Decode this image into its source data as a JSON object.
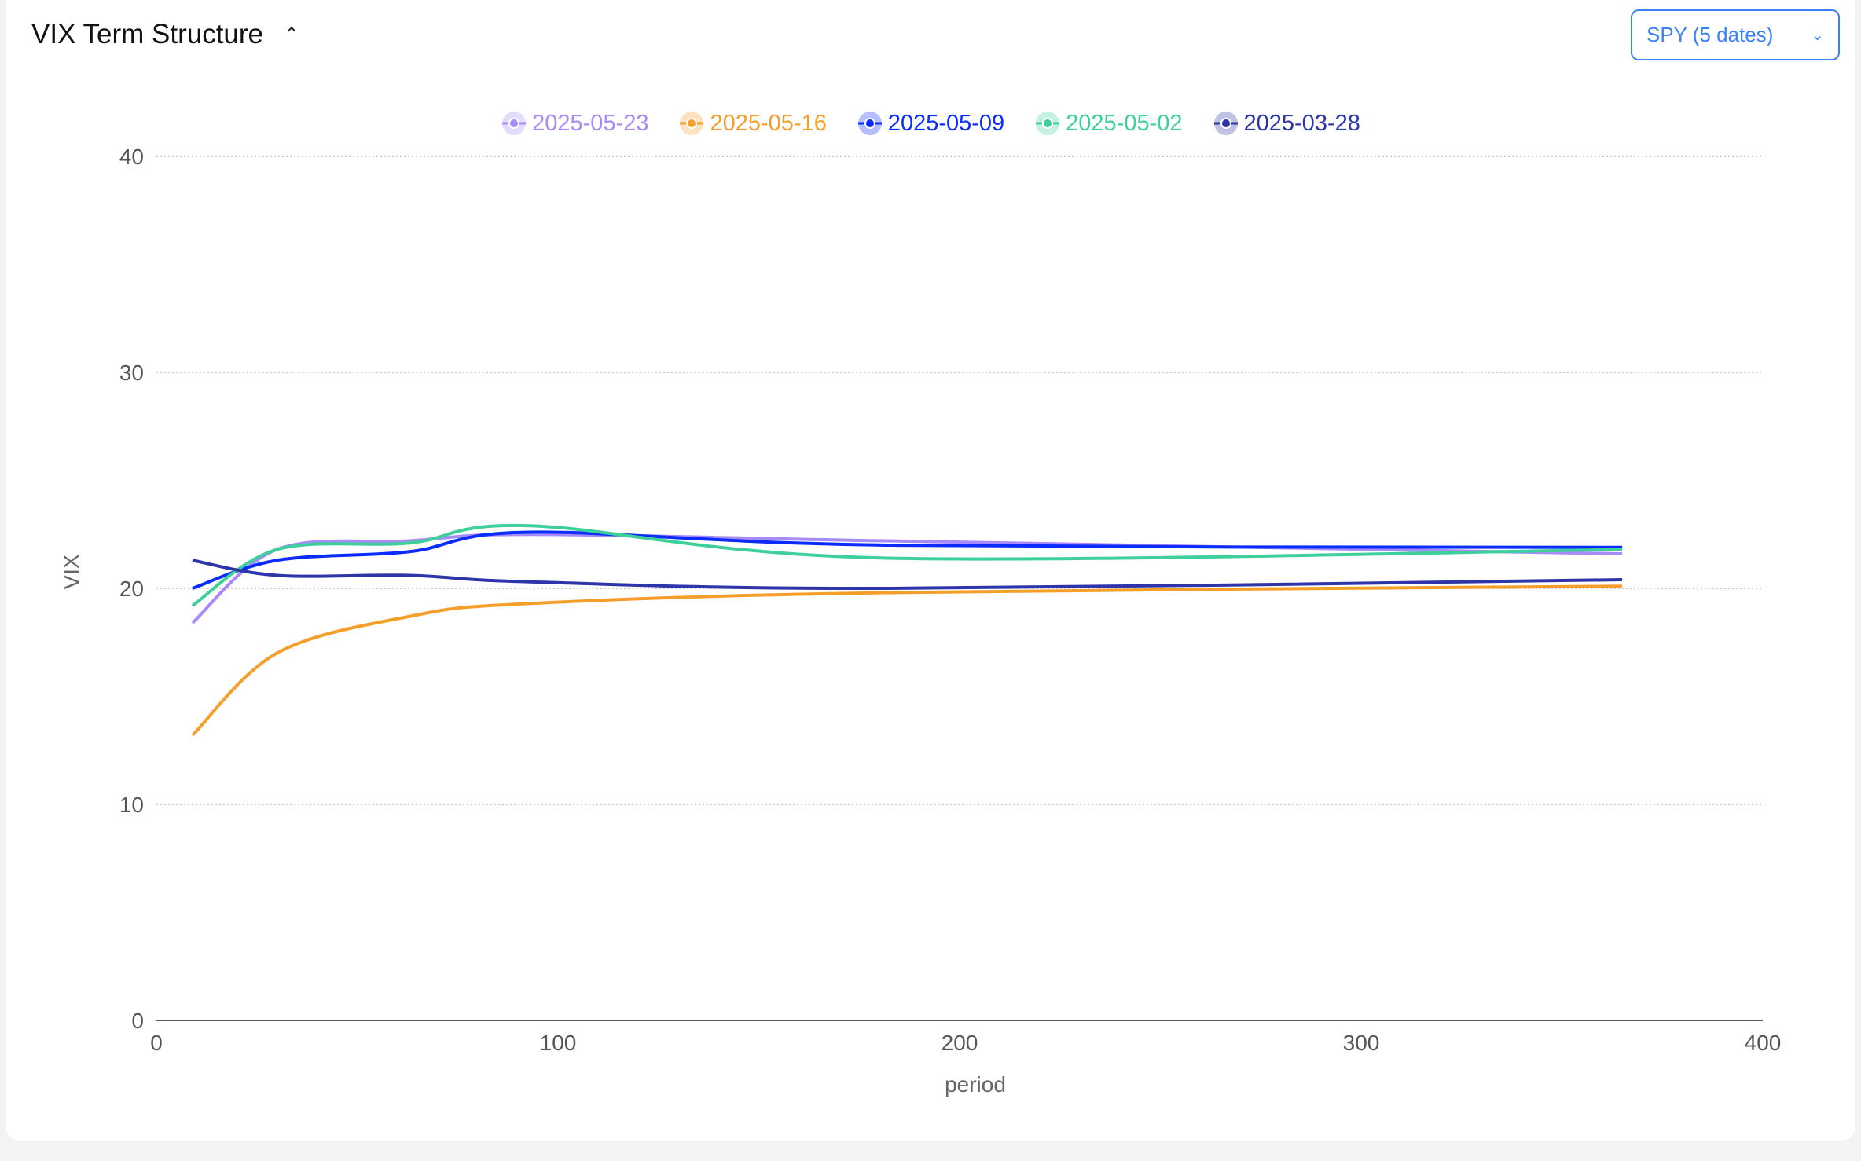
{
  "header": {
    "title": "VIX Term Structure",
    "collapse_icon": "chevron-up-icon",
    "dropdown_value": "SPY (5 dates)"
  },
  "chart_data": {
    "type": "line",
    "title": "VIX Term Structure",
    "xlabel": "period",
    "ylabel": "VIX",
    "xlim": [
      0,
      400
    ],
    "ylim": [
      0,
      40
    ],
    "xticks": [
      "0",
      "100",
      "200",
      "300",
      "400"
    ],
    "yticks": [
      "0",
      "10",
      "20",
      "30",
      "40"
    ],
    "grid": "horizontal-dotted",
    "legend": "top-center",
    "x": [
      9,
      30,
      63,
      93,
      182,
      365
    ],
    "series": [
      {
        "name": "2025-05-23",
        "color": "#a78bfa",
        "values": [
          18.4,
          21.8,
          22.2,
          22.5,
          22.2,
          21.6
        ]
      },
      {
        "name": "2025-05-16",
        "color": "#f59e2a",
        "values": [
          13.2,
          17.0,
          18.7,
          19.3,
          19.8,
          20.1
        ]
      },
      {
        "name": "2025-05-09",
        "color": "#0a2cff",
        "values": [
          20.0,
          21.3,
          21.7,
          22.6,
          22.0,
          21.9
        ]
      },
      {
        "name": "2025-05-02",
        "color": "#3ecf9a",
        "values": [
          19.2,
          21.8,
          22.1,
          22.9,
          21.4,
          21.8
        ]
      },
      {
        "name": "2025-03-28",
        "color": "#2e35a8",
        "values": [
          21.3,
          20.6,
          20.6,
          20.3,
          20.0,
          20.4
        ]
      }
    ]
  }
}
